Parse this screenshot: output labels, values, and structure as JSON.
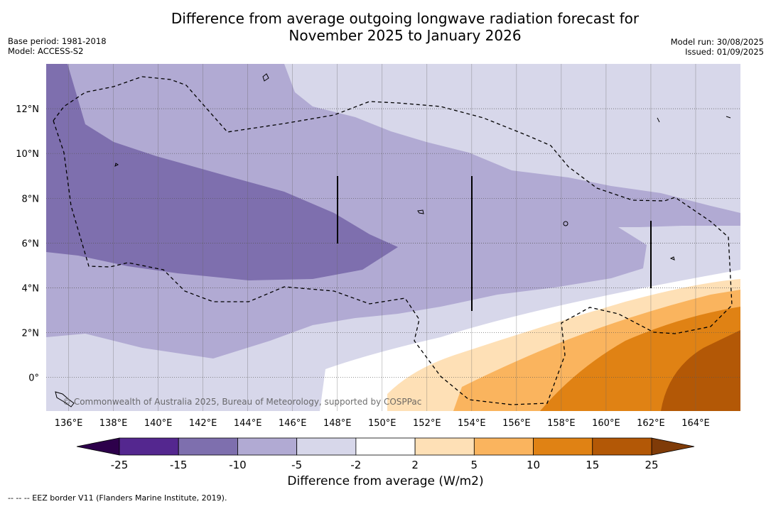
{
  "title_line1": "Difference from average outgoing longwave radiation forecast for",
  "title_line2": "November 2025 to January 2026",
  "base_period": "Base period: 1981-2018",
  "model": "Model: ACCESS-S2",
  "model_run": "Model run: 30/08/2025",
  "issued": "Issued: 01/09/2025",
  "copyright": "© Commonwealth of Australia 2025, Bureau of Meteorology, supported by COSPPac",
  "footer_note": "--  --  -- EEZ border V11 (Flanders Marine Institute, 2019).",
  "colorbar": {
    "title": "Difference from average (W/m2)",
    "tick_labels": [
      "-25",
      "-15",
      "-10",
      "-5",
      "-2",
      "2",
      "5",
      "10",
      "15",
      "25"
    ],
    "bins": [
      {
        "from": "-25",
        "to": "-15",
        "color": "#54278f"
      },
      {
        "from": "-15",
        "to": "-10",
        "color": "#7e6fae"
      },
      {
        "from": "-10",
        "to": "-5",
        "color": "#b1aad3"
      },
      {
        "from": "-5",
        "to": "-2",
        "color": "#d7d7ea"
      },
      {
        "from": "-2",
        "to": "2",
        "color": "#ffffff"
      },
      {
        "from": "2",
        "to": "5",
        "color": "#fee0b6"
      },
      {
        "from": "5",
        "to": "10",
        "color": "#fab45e"
      },
      {
        "from": "10",
        "to": "15",
        "color": "#e08214"
      },
      {
        "from": "15",
        "to": "25",
        "color": "#b35806"
      }
    ],
    "under_color": "#2d004b",
    "over_color": "#7f3b08"
  },
  "lon_labels": [
    "136°E",
    "138°E",
    "140°E",
    "142°E",
    "144°E",
    "146°E",
    "148°E",
    "150°E",
    "152°E",
    "154°E",
    "156°E",
    "158°E",
    "160°E",
    "162°E",
    "164°E"
  ],
  "lat_labels": [
    "12°N",
    "10°N",
    "8°N",
    "6°N",
    "4°N",
    "2°N",
    "0°"
  ],
  "map_extent": {
    "lon_min": 135.0,
    "lon_max": 166.0,
    "lat_min": -1.5,
    "lat_max": 14.0
  }
}
